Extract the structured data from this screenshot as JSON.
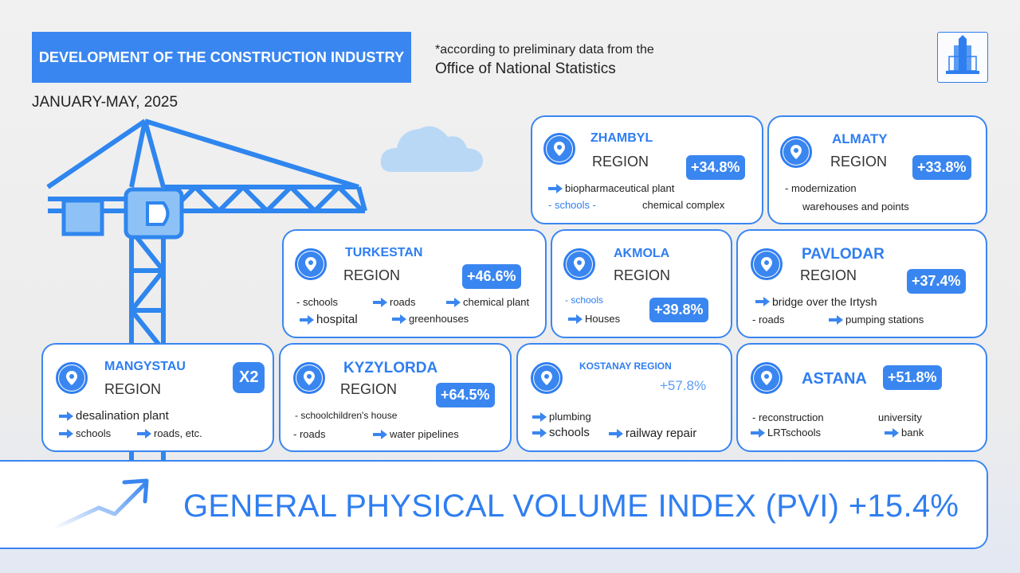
{
  "header": {
    "title": "DEVELOPMENT OF THE CONSTRUCTION INDUSTRY",
    "note_line1": "*according to preliminary data from the",
    "note_line2": "Office of National Statistics",
    "period": "JANUARY-MAY, 2025"
  },
  "regions": {
    "zhambyl": {
      "name": "ZHAMBYL",
      "sub": "REGION",
      "value": "+34.8%",
      "items": [
        "biopharmaceutical plant",
        "- schools -",
        "chemical complex"
      ]
    },
    "almaty": {
      "name": "ALMATY",
      "sub": "REGION",
      "value": "+33.8%",
      "items": [
        "- modernization",
        "warehouses and points"
      ]
    },
    "turkestan": {
      "name": "TURKESTAN",
      "sub": "REGION",
      "value": "+46.6%",
      "items": [
        "- schools",
        "roads",
        "chemical plant",
        "hospital",
        "greenhouses"
      ]
    },
    "akmola": {
      "name": "AKMOLA",
      "sub": "REGION",
      "value": "+39.8%",
      "items": [
        "- schools",
        "Houses"
      ]
    },
    "pavlodar": {
      "name": "PAVLODAR",
      "sub": "REGION",
      "value": "+37.4%",
      "items": [
        "bridge over the Irtysh",
        "- roads",
        "pumping stations"
      ]
    },
    "mangystau": {
      "name": "MANGYSTAU",
      "sub": "REGION",
      "value": "X2",
      "items": [
        "desalination plant",
        "schools",
        "roads, etc."
      ]
    },
    "kyzylorda": {
      "name": "KYZYLORDA",
      "sub": "REGION",
      "value": "+64.5%",
      "items": [
        "- schoolchildren's house",
        "- roads",
        "water pipelines"
      ]
    },
    "kostanay": {
      "name": "KOSTANAY REGION",
      "value": "+57.8%",
      "items": [
        "plumbing",
        "schools",
        "railway repair"
      ]
    },
    "astana": {
      "name": "ASTANA",
      "value": "+51.8%",
      "items": [
        "- reconstruction",
        "university",
        "LRTschools",
        "bank"
      ]
    }
  },
  "footer": {
    "pvi_text": "GENERAL PHYSICAL VOLUME INDEX (PVI) +15.4%"
  },
  "colors": {
    "accent": "#3a86f0",
    "crane": "#2f86ee",
    "crane_light": "#8ec2f6",
    "cloud": "#b9d8f6"
  },
  "icons": [
    "location-pin-icon",
    "arrow-right-icon",
    "trend-up-arrow-icon",
    "building-logo-icon",
    "crane-illustration",
    "cloud-illustration"
  ]
}
